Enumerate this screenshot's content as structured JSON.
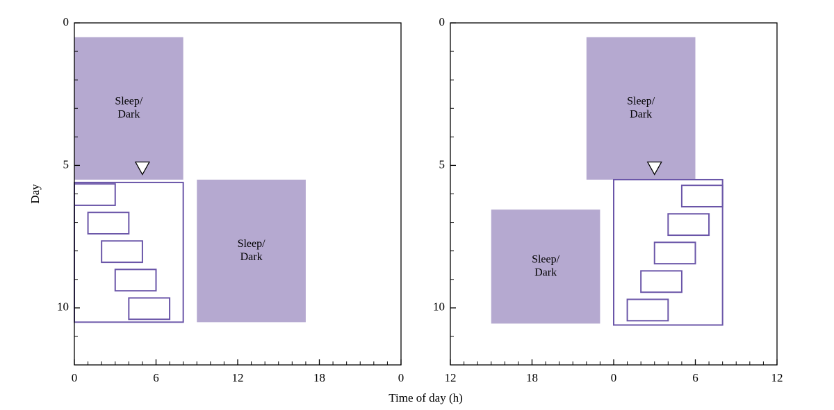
{
  "chart_data": [
    {
      "type": "rect",
      "xlabel": "Time of day (h)",
      "ylabel": "Day",
      "xlim": [
        0,
        24
      ],
      "ylim": [
        0,
        12
      ],
      "xticks": [
        0,
        6,
        12,
        18,
        {
          "value": 24,
          "label": "0"
        }
      ],
      "xminorticks": [
        1,
        2,
        3,
        4,
        5,
        7,
        8,
        9,
        10,
        11,
        13,
        14,
        15,
        16,
        17,
        19,
        20,
        21,
        22,
        23
      ],
      "yticks": [
        0,
        5,
        10
      ],
      "yminorticks": [
        1,
        2,
        3,
        4,
        6,
        7,
        8,
        9,
        11
      ],
      "fill_color": "#b5a9d0",
      "outline_color": "#6a55a8",
      "shaded": [
        {
          "x": [
            0,
            8
          ],
          "y": [
            0.5,
            5.5
          ],
          "label": [
            "Sleep/",
            "Dark"
          ]
        },
        {
          "x": [
            9,
            17
          ],
          "y": [
            5.5,
            10.5
          ],
          "label": [
            "Sleep/",
            "Dark"
          ]
        }
      ],
      "outlines": [
        {
          "x": [
            0,
            8
          ],
          "y": [
            5.6,
            10.5
          ]
        },
        {
          "x": [
            0,
            3
          ],
          "y": [
            5.65,
            6.4
          ]
        },
        {
          "x": [
            1,
            4
          ],
          "y": [
            6.65,
            7.4
          ]
        },
        {
          "x": [
            2,
            5
          ],
          "y": [
            7.65,
            8.4
          ]
        },
        {
          "x": [
            3,
            6
          ],
          "y": [
            8.65,
            9.4
          ]
        },
        {
          "x": [
            4,
            7
          ],
          "y": [
            9.65,
            10.4
          ]
        }
      ],
      "marker": {
        "x": 5,
        "y": 5.1
      }
    },
    {
      "type": "rect",
      "xlim": [
        12,
        36
      ],
      "ylim": [
        0,
        12
      ],
      "xticks": [
        12,
        18,
        {
          "value": 24,
          "label": "0"
        },
        {
          "value": 30,
          "label": "6"
        },
        {
          "value": 36,
          "label": "12"
        }
      ],
      "xminorticks": [
        13,
        14,
        15,
        16,
        17,
        19,
        20,
        21,
        22,
        23,
        25,
        26,
        27,
        28,
        29,
        31,
        32,
        33,
        34,
        35
      ],
      "yticks": [
        0,
        5,
        10
      ],
      "yminorticks": [
        1,
        2,
        3,
        4,
        6,
        7,
        8,
        9,
        11
      ],
      "fill_color": "#b5a9d0",
      "outline_color": "#6a55a8",
      "shaded": [
        {
          "x": [
            22,
            30
          ],
          "y": [
            0.5,
            5.5
          ],
          "label": [
            "Sleep/",
            "Dark"
          ]
        },
        {
          "x": [
            15,
            23
          ],
          "y": [
            6.55,
            10.55
          ],
          "label": [
            "Sleep/",
            "Dark"
          ]
        }
      ],
      "outlines": [
        {
          "x": [
            24,
            32
          ],
          "y": [
            5.5,
            10.6
          ]
        },
        {
          "x": [
            29,
            32
          ],
          "y": [
            5.7,
            6.45
          ]
        },
        {
          "x": [
            28,
            31
          ],
          "y": [
            6.7,
            7.45
          ]
        },
        {
          "x": [
            27,
            30
          ],
          "y": [
            7.7,
            8.45
          ]
        },
        {
          "x": [
            26,
            29
          ],
          "y": [
            8.7,
            9.45
          ]
        },
        {
          "x": [
            25,
            28
          ],
          "y": [
            9.7,
            10.45
          ]
        }
      ],
      "marker": {
        "x": 27,
        "y": 5.1
      }
    }
  ]
}
